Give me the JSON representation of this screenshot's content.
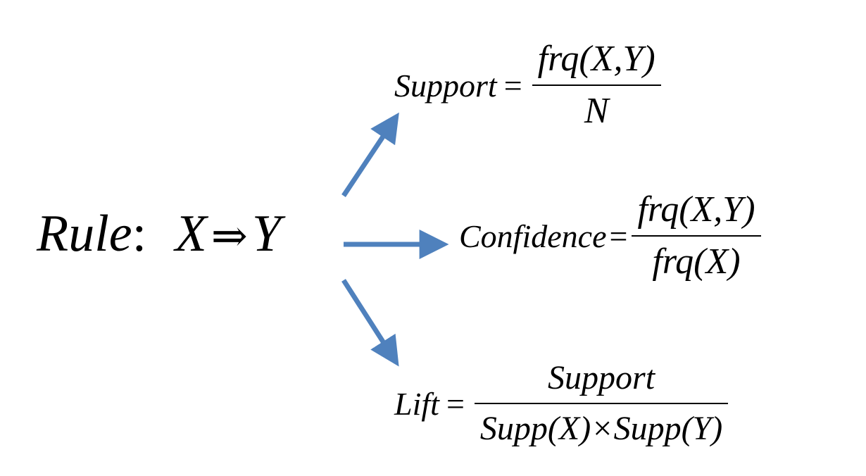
{
  "rule": {
    "label": "Rule",
    "colon": ":",
    "x": "X",
    "implies": "⇒",
    "y": "Y"
  },
  "arrow_color": "#4f81bd",
  "formulas": {
    "support": {
      "name": "Support",
      "equals": "=",
      "numerator": "frq(X,Y)",
      "denominator": "N"
    },
    "confidence": {
      "name": "Confidence",
      "equals": "=",
      "numerator": "frq(X,Y)",
      "denominator": "frq(X)"
    },
    "lift": {
      "name": "Lift",
      "equals": "=",
      "numerator": "Support",
      "denominator": "Supp(X)×Supp(Y)"
    }
  }
}
